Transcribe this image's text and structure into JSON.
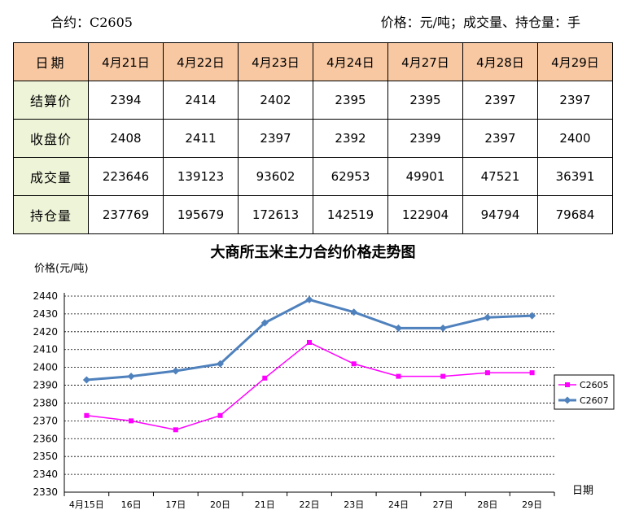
{
  "header": {
    "contract": "合约：C2605",
    "units": "价格：元/吨；成交量、持仓量：手"
  },
  "table": {
    "corner_label": "日期",
    "dates": [
      "4月21日",
      "4月22日",
      "4月23日",
      "4月24日",
      "4月27日",
      "4月28日",
      "4月29日"
    ],
    "rows": [
      {
        "label": "结算价",
        "values": [
          "2394",
          "2414",
          "2402",
          "2395",
          "2395",
          "2397",
          "2397"
        ]
      },
      {
        "label": "收盘价",
        "values": [
          "2408",
          "2411",
          "2397",
          "2392",
          "2399",
          "2397",
          "2400"
        ]
      },
      {
        "label": "成交量",
        "values": [
          "223646",
          "139123",
          "93602",
          "62953",
          "49901",
          "47521",
          "36391"
        ]
      },
      {
        "label": "持仓量",
        "values": [
          "237769",
          "195679",
          "172613",
          "142519",
          "122904",
          "94794",
          "79684"
        ]
      }
    ]
  },
  "chart_data": {
    "type": "line",
    "title": "大商所玉米主力合约价格走势图",
    "ylabel": "价格(元/吨)",
    "xlabel": "日期",
    "categories": [
      "4月15日",
      "16日",
      "17日",
      "20日",
      "21日",
      "22日",
      "23日",
      "24日",
      "27日",
      "28日",
      "29日"
    ],
    "ylim": [
      2330,
      2440
    ],
    "yticks": [
      2330,
      2340,
      2350,
      2360,
      2370,
      2380,
      2390,
      2400,
      2410,
      2420,
      2430,
      2440
    ],
    "grid": true,
    "legend_position": "right",
    "series": [
      {
        "name": "C2605",
        "color": "#ff00ff",
        "marker": "square",
        "values": [
          2373,
          2370,
          2365,
          2373,
          2394,
          2414,
          2402,
          2395,
          2395,
          2397,
          2397
        ]
      },
      {
        "name": "C2607",
        "color": "#4f81bd",
        "marker": "diamond",
        "values": [
          2393,
          2395,
          2398,
          2402,
          2425,
          2438,
          2431,
          2422,
          2422,
          2428,
          2429
        ]
      }
    ]
  }
}
